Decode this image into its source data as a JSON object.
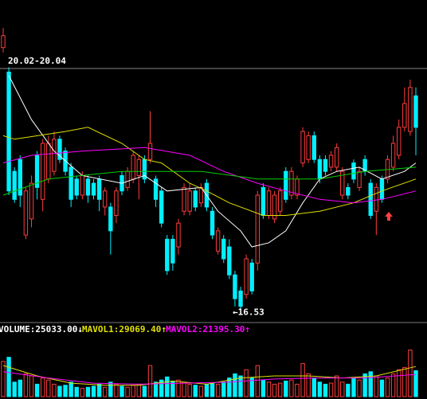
{
  "chart_data": {
    "type": "candlestick",
    "up_color": "#ff3c3c",
    "down_color": "#00f0ff",
    "ylim": [
      16.4,
      21.0
    ],
    "annotations": [
      "20.02-20.04",
      "←16.53"
    ],
    "open": [
      20.32,
      19.97,
      18.55,
      18.72,
      17.64,
      17.87,
      18.78,
      18.15,
      18.44,
      18.55,
      19.01,
      18.84,
      18.61,
      18.44,
      18.21,
      18.44,
      18.38,
      18.44,
      18.04,
      18.04,
      17.92,
      18.49,
      18.32,
      18.44,
      18.49,
      18.72,
      18.72,
      18.44,
      18.27,
      17.58,
      17.58,
      17.47,
      17.98,
      17.98,
      18.27,
      18.1,
      18.38,
      17.98,
      17.41,
      17.58,
      17.47,
      17.07,
      16.84,
      16.79,
      17.24,
      17.24,
      18.32,
      17.92,
      17.87,
      17.98,
      18.55,
      18.21,
      18.21,
      18.67,
      18.72,
      19.06,
      18.72,
      18.72,
      18.61,
      18.61,
      18.21,
      18.32,
      18.67,
      18.32,
      18.72,
      18.38,
      17.98,
      18.44,
      18.44,
      18.61,
      18.78,
      19.18,
      19.12,
      19.63
    ],
    "high": [
      20.6,
      20.04,
      18.61,
      18.78,
      18.32,
      18.49,
      18.84,
      19.01,
      19.06,
      19.12,
      19.06,
      18.89,
      18.67,
      18.49,
      18.55,
      18.49,
      18.44,
      18.49,
      18.32,
      18.1,
      18.32,
      18.55,
      18.61,
      18.84,
      18.78,
      18.78,
      19.41,
      18.49,
      18.32,
      17.64,
      17.64,
      17.87,
      18.38,
      18.38,
      18.32,
      18.38,
      18.44,
      18.04,
      17.75,
      17.64,
      17.58,
      17.13,
      16.9,
      17.36,
      17.3,
      18.27,
      18.38,
      18.32,
      18.27,
      18.32,
      18.61,
      18.61,
      18.49,
      19.18,
      19.12,
      19.12,
      18.78,
      18.78,
      18.84,
      18.95,
      18.61,
      18.38,
      18.72,
      18.61,
      18.78,
      18.44,
      18.38,
      18.49,
      18.78,
      19.06,
      19.29,
      19.75,
      19.86,
      19.75
    ],
    "low": [
      20.25,
      18.21,
      18.1,
      18.04,
      17.58,
      17.75,
      18.15,
      17.98,
      18.38,
      18.49,
      18.67,
      18.49,
      18.04,
      18.15,
      18.15,
      18.1,
      18.15,
      17.98,
      17.92,
      17.36,
      17.81,
      18.21,
      18.27,
      18.38,
      18.15,
      18.38,
      18.67,
      18.04,
      17.75,
      17.07,
      17.13,
      17.36,
      17.92,
      17.92,
      17.98,
      18.04,
      17.98,
      17.58,
      17.36,
      17.24,
      17.01,
      16.62,
      16.53,
      16.73,
      16.79,
      17.13,
      17.87,
      17.87,
      17.81,
      17.92,
      18.1,
      18.15,
      18.15,
      18.61,
      18.67,
      18.67,
      18.38,
      18.49,
      18.55,
      18.55,
      18.15,
      18.15,
      18.38,
      18.27,
      18.49,
      17.87,
      17.64,
      18.1,
      18.38,
      18.55,
      18.72,
      19.12,
      19.06,
      18.78
    ],
    "close": [
      20.49,
      18.27,
      18.15,
      18.21,
      18.27,
      18.38,
      18.32,
      18.95,
      18.95,
      19.01,
      18.72,
      18.55,
      18.15,
      18.21,
      18.49,
      18.21,
      18.21,
      18.15,
      18.27,
      17.7,
      18.27,
      18.27,
      18.55,
      18.78,
      18.72,
      18.44,
      18.95,
      18.15,
      17.81,
      17.13,
      17.24,
      17.81,
      18.32,
      18.27,
      18.04,
      18.32,
      18.04,
      17.64,
      17.7,
      17.3,
      17.07,
      16.73,
      16.62,
      17.3,
      16.84,
      18.21,
      17.92,
      18.27,
      18.21,
      18.27,
      18.15,
      18.55,
      18.44,
      19.12,
      19.06,
      18.72,
      18.44,
      18.55,
      18.78,
      18.89,
      18.55,
      18.21,
      18.44,
      18.55,
      18.55,
      17.92,
      18.32,
      18.15,
      18.72,
      18.95,
      19.18,
      19.52,
      19.75,
      19.18
    ],
    "lines": [
      {
        "color": "#ffffff",
        "x": [
          1,
          5,
          9,
          14,
          21,
          25,
          29,
          35,
          38,
          42,
          44,
          47,
          50,
          53,
          56,
          59,
          63,
          67,
          71,
          73
        ],
        "values": [
          19.92,
          19.29,
          18.84,
          18.49,
          18.38,
          18.49,
          18.27,
          18.32,
          17.98,
          17.7,
          17.47,
          17.53,
          17.7,
          18.1,
          18.44,
          18.55,
          18.61,
          18.44,
          18.55,
          18.67
        ]
      },
      {
        "color": "#e0e000",
        "x": [
          0,
          2,
          11,
          15,
          21,
          25,
          28,
          33,
          36,
          40,
          46,
          50,
          56,
          62,
          67,
          73
        ],
        "values": [
          19.06,
          19.01,
          19.12,
          19.18,
          18.95,
          18.72,
          18.67,
          18.38,
          18.27,
          18.1,
          17.92,
          17.92,
          17.98,
          18.1,
          18.27,
          18.44
        ]
      },
      {
        "color": "#ff00ff",
        "x": [
          0,
          5,
          14,
          25,
          33,
          39,
          45,
          50,
          56,
          62,
          67,
          73
        ],
        "values": [
          18.67,
          18.78,
          18.84,
          18.89,
          18.78,
          18.55,
          18.38,
          18.27,
          18.15,
          18.1,
          18.15,
          18.27
        ]
      },
      {
        "color": "#00d000",
        "x": [
          0,
          8,
          21,
          35,
          45,
          56,
          64,
          73
        ],
        "values": [
          18.21,
          18.44,
          18.55,
          18.55,
          18.44,
          18.44,
          18.55,
          18.61
        ]
      }
    ],
    "volume": {
      "ylim": [
        0,
        60000
      ],
      "legend": [
        {
          "text": "VOLUME:25033.00↓",
          "color": "#ffffff"
        },
        {
          "text": "MAVOL1:29069.40↑",
          "color": "#e0e000"
        },
        {
          "text": "MAVOL2:21395.30↑",
          "color": "#ff00ff"
        }
      ],
      "values": [
        34000,
        38000,
        14000,
        16000,
        22000,
        20000,
        12000,
        18000,
        16000,
        12000,
        10000,
        11000,
        14000,
        9000,
        8000,
        9000,
        10000,
        12000,
        9000,
        14000,
        12000,
        10000,
        9000,
        11000,
        12000,
        10000,
        30000,
        14000,
        16000,
        19000,
        15000,
        16000,
        14000,
        12000,
        11000,
        10000,
        12000,
        13000,
        12000,
        14000,
        18000,
        22000,
        20000,
        26000,
        18000,
        30000,
        16000,
        14000,
        12000,
        13000,
        15000,
        16000,
        12000,
        32000,
        22000,
        18000,
        14000,
        12000,
        13000,
        20000,
        14000,
        12000,
        18000,
        16000,
        22000,
        24000,
        20000,
        16000,
        18000,
        22000,
        26000,
        28000,
        45000,
        25033
      ],
      "lines": [
        {
          "color": "#e0e000",
          "x": [
            0,
            6,
            12,
            18,
            24,
            30,
            36,
            42,
            48,
            54,
            60,
            66,
            73
          ],
          "values": [
            30000,
            20000,
            13000,
            11000,
            11000,
            15000,
            12000,
            18000,
            20000,
            20000,
            18000,
            20000,
            29069.4
          ]
        },
        {
          "color": "#ff00ff",
          "x": [
            0,
            8,
            16,
            24,
            32,
            40,
            48,
            56,
            64,
            73
          ],
          "values": [
            24000,
            18000,
            13000,
            12000,
            13000,
            14000,
            17000,
            18000,
            18000,
            21395.3
          ]
        }
      ]
    }
  }
}
